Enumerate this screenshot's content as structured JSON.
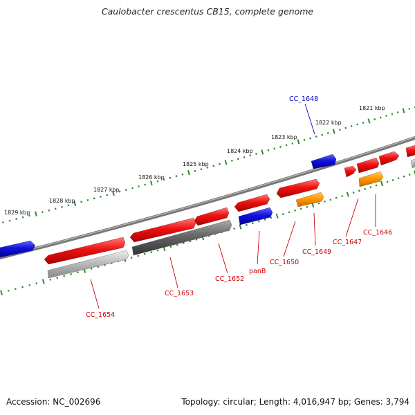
{
  "title": "Caulobacter crescentus CB15, complete genome",
  "footer": {
    "accession": "Accession: NC_002696",
    "stats": "Topology: circular; Length: 4,016,947 bp; Genes: 3,794"
  },
  "colors": {
    "backbone": "#888888",
    "ruler_ticks": "#2a8a2a",
    "gene_red": "#ee1111",
    "gene_blue": "#1111dd",
    "gene_orange": "#ff9900",
    "gene_gray": "#666666",
    "gene_lightgray": "#bbbbbb",
    "label_red": "#cc0000",
    "label_blue": "#0000cc"
  },
  "ruler_labels": [
    "1821 kbp",
    "1822 kbp",
    "1823 kbp",
    "1824 kbp",
    "1825 kbp",
    "1826 kbp",
    "1827 kbp",
    "1828 kbp",
    "1829 kbp"
  ],
  "gene_labels": [
    {
      "name": "CC_1648",
      "color": "blue"
    },
    {
      "name": "CC_1646",
      "color": "red"
    },
    {
      "name": "CC_1647",
      "color": "red"
    },
    {
      "name": "CC_1649",
      "color": "red"
    },
    {
      "name": "CC_1650",
      "color": "red"
    },
    {
      "name": "panB",
      "color": "red"
    },
    {
      "name": "CC_1652",
      "color": "red"
    },
    {
      "name": "CC_1653",
      "color": "red"
    },
    {
      "name": "CC_1654",
      "color": "red"
    }
  ]
}
